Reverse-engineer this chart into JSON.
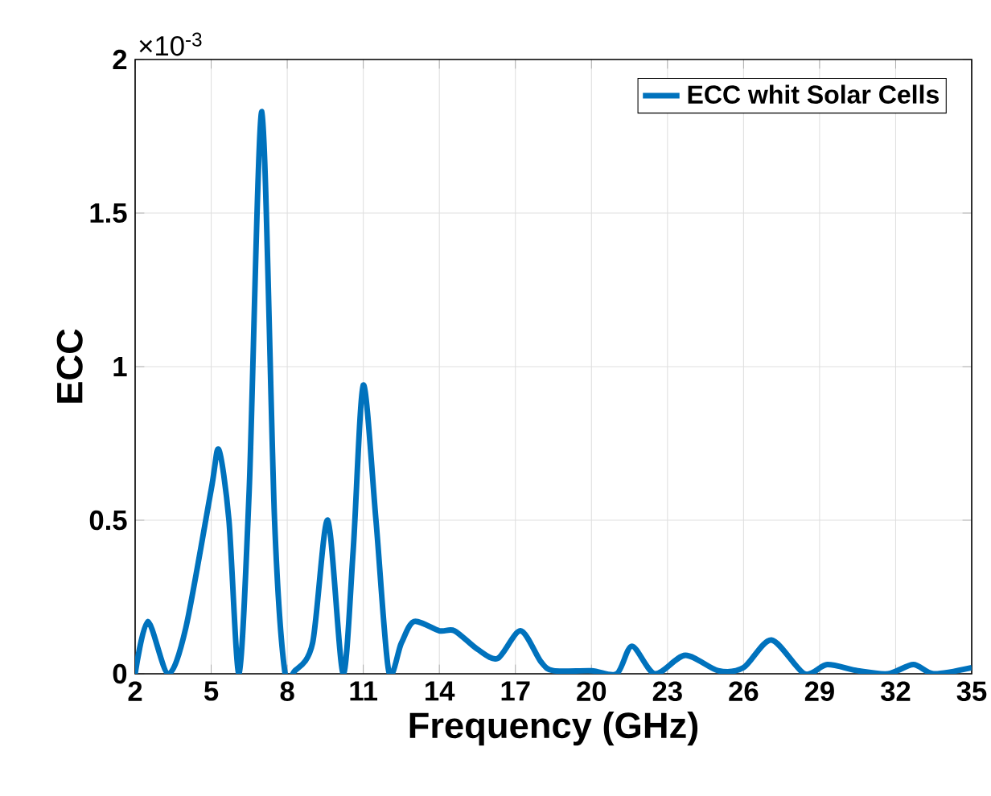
{
  "chart_data": {
    "type": "line",
    "xlabel": "Frequency (GHz)",
    "ylabel": "ECC",
    "annotations": [
      "×10$^{-3}$"
    ],
    "x": [
      2,
      2.5,
      3.3,
      4,
      5,
      5.3,
      5.7,
      6.1,
      6.5,
      7.0,
      7.5,
      7.9,
      8.3,
      9.0,
      9.6,
      10.2,
      10.6,
      11.0,
      11.5,
      12.0,
      12.5,
      13.0,
      14,
      14.6,
      15.5,
      16.3,
      17.2,
      18.0,
      18.5,
      20,
      21.0,
      21.6,
      22.5,
      23.7,
      25,
      26.0,
      27.1,
      28.4,
      29.3,
      30.5,
      31.7,
      32.7,
      33.5,
      35
    ],
    "series": [
      {
        "name": "ECC whit Solar Cells",
        "color": "#0072bd",
        "values": [
          0,
          0.17,
          0,
          0.15,
          0.6,
          0.73,
          0.5,
          0,
          0.6,
          1.83,
          0.5,
          0.01,
          0.01,
          0.1,
          0.5,
          0,
          0.4,
          0.94,
          0.5,
          0.01,
          0.1,
          0.17,
          0.14,
          0.14,
          0.08,
          0.05,
          0.14,
          0.04,
          0.01,
          0.01,
          0,
          0.09,
          0,
          0.06,
          0.01,
          0.02,
          0.11,
          0,
          0.03,
          0.01,
          0,
          0.03,
          0,
          0.02
        ]
      }
    ],
    "xlim": [
      2,
      35
    ],
    "ylim": [
      0,
      2
    ],
    "xticks": [
      2,
      5,
      8,
      11,
      14,
      17,
      20,
      23,
      26,
      29,
      32,
      35
    ],
    "yticks": [
      0,
      0.5,
      1,
      1.5,
      2
    ],
    "grid": true,
    "legend": "top right",
    "line_style": "solid",
    "marker": "none"
  }
}
